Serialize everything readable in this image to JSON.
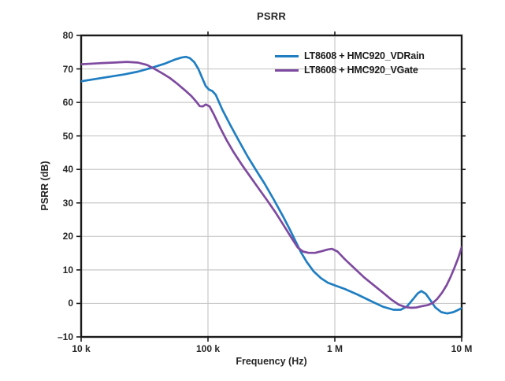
{
  "figure": {
    "title": "PSRR"
  },
  "chart_data": {
    "type": "line",
    "title": "PSRR",
    "xlabel": "Frequency (Hz)",
    "ylabel": "PSRR (dB)",
    "x_scale": "log",
    "xlim": [
      10000,
      10000000
    ],
    "ylim": [
      -10,
      80
    ],
    "grid": true,
    "grid_x": [
      100000,
      1000000
    ],
    "grid_y": [
      0,
      10,
      20,
      30,
      40,
      50,
      60,
      70
    ],
    "x_ticks": [
      {
        "v": 10000,
        "label": "10 k"
      },
      {
        "v": 100000,
        "label": "100 k"
      },
      {
        "v": 1000000,
        "label": "1 M"
      },
      {
        "v": 10000000,
        "label": "10 M"
      }
    ],
    "y_ticks": [
      {
        "v": -10,
        "label": "–10"
      },
      {
        "v": 0,
        "label": "0"
      },
      {
        "v": 10,
        "label": "10"
      },
      {
        "v": 20,
        "label": "20"
      },
      {
        "v": 30,
        "label": "30"
      },
      {
        "v": 40,
        "label": "40"
      },
      {
        "v": 50,
        "label": "50"
      },
      {
        "v": 60,
        "label": "60"
      },
      {
        "v": 70,
        "label": "70"
      },
      {
        "v": 80,
        "label": "80"
      }
    ],
    "colors": {
      "grid": "#c9c9c9",
      "axis": "#1a1a1a",
      "text": "#262626"
    },
    "legend_position": "top-right-inside",
    "series": [
      {
        "name": "LT8608 + HMC920_VDRain",
        "color": "#1f7ec2",
        "points": [
          [
            10000,
            66.3
          ],
          [
            13000,
            67.0
          ],
          [
            17000,
            67.7
          ],
          [
            22000,
            68.4
          ],
          [
            28000,
            69.2
          ],
          [
            35000,
            70.2
          ],
          [
            45000,
            71.5
          ],
          [
            55000,
            72.8
          ],
          [
            62000,
            73.4
          ],
          [
            67000,
            73.6
          ],
          [
            72000,
            73.2
          ],
          [
            78000,
            72.0
          ],
          [
            84000,
            70.0
          ],
          [
            90000,
            67.3
          ],
          [
            96000,
            64.9
          ],
          [
            102000,
            63.8
          ],
          [
            108000,
            63.4
          ],
          [
            115000,
            62.3
          ],
          [
            130000,
            57.8
          ],
          [
            150000,
            53.2
          ],
          [
            175000,
            48.6
          ],
          [
            205000,
            43.9
          ],
          [
            240000,
            39.7
          ],
          [
            280000,
            35.7
          ],
          [
            330000,
            31.0
          ],
          [
            390000,
            26.0
          ],
          [
            440000,
            22.2
          ],
          [
            490000,
            18.6
          ],
          [
            540000,
            15.3
          ],
          [
            600000,
            12.4
          ],
          [
            680000,
            9.6
          ],
          [
            780000,
            7.5
          ],
          [
            880000,
            6.2
          ],
          [
            1000000,
            5.4
          ],
          [
            1200000,
            4.3
          ],
          [
            1500000,
            2.7
          ],
          [
            1900000,
            0.8
          ],
          [
            2400000,
            -1.0
          ],
          [
            2900000,
            -1.9
          ],
          [
            3300000,
            -1.9
          ],
          [
            3700000,
            -0.9
          ],
          [
            4100000,
            1.1
          ],
          [
            4500000,
            3.0
          ],
          [
            4800000,
            3.7
          ],
          [
            5200000,
            2.9
          ],
          [
            5700000,
            0.8
          ],
          [
            6200000,
            -1.2
          ],
          [
            6900000,
            -2.6
          ],
          [
            7700000,
            -3.0
          ],
          [
            8600000,
            -2.6
          ],
          [
            9300000,
            -2.0
          ],
          [
            10000000,
            -1.4
          ]
        ]
      },
      {
        "name": "LT8608 + HMC920_VGate",
        "color": "#7e4a9f",
        "points": [
          [
            10000,
            71.4
          ],
          [
            14000,
            71.7
          ],
          [
            18000,
            71.9
          ],
          [
            23000,
            72.1
          ],
          [
            28000,
            71.9
          ],
          [
            33000,
            71.2
          ],
          [
            38000,
            70.0
          ],
          [
            44000,
            68.6
          ],
          [
            50000,
            67.3
          ],
          [
            58000,
            65.4
          ],
          [
            66000,
            63.6
          ],
          [
            74000,
            61.9
          ],
          [
            81000,
            60.2
          ],
          [
            86000,
            58.9
          ],
          [
            91000,
            58.8
          ],
          [
            96000,
            59.4
          ],
          [
            103000,
            58.8
          ],
          [
            112000,
            56.2
          ],
          [
            125000,
            52.4
          ],
          [
            140000,
            48.8
          ],
          [
            160000,
            45.0
          ],
          [
            185000,
            41.4
          ],
          [
            215000,
            37.9
          ],
          [
            250000,
            34.4
          ],
          [
            290000,
            31.0
          ],
          [
            340000,
            27.2
          ],
          [
            395000,
            23.3
          ],
          [
            455000,
            19.6
          ],
          [
            510000,
            16.7
          ],
          [
            560000,
            15.5
          ],
          [
            620000,
            15.1
          ],
          [
            700000,
            15.1
          ],
          [
            790000,
            15.6
          ],
          [
            880000,
            16.1
          ],
          [
            950000,
            16.3
          ],
          [
            1050000,
            15.5
          ],
          [
            1200000,
            13.2
          ],
          [
            1400000,
            10.8
          ],
          [
            1700000,
            7.8
          ],
          [
            2000000,
            5.6
          ],
          [
            2400000,
            3.2
          ],
          [
            2800000,
            1.1
          ],
          [
            3200000,
            -0.4
          ],
          [
            3600000,
            -1.1
          ],
          [
            4000000,
            -1.3
          ],
          [
            4400000,
            -1.2
          ],
          [
            4900000,
            -0.8
          ],
          [
            5400000,
            -0.5
          ],
          [
            5900000,
            0.1
          ],
          [
            6400000,
            1.3
          ],
          [
            7000000,
            3.2
          ],
          [
            7600000,
            5.4
          ],
          [
            8200000,
            8.0
          ],
          [
            8800000,
            10.8
          ],
          [
            9400000,
            13.6
          ],
          [
            10000000,
            16.8
          ]
        ]
      }
    ]
  }
}
